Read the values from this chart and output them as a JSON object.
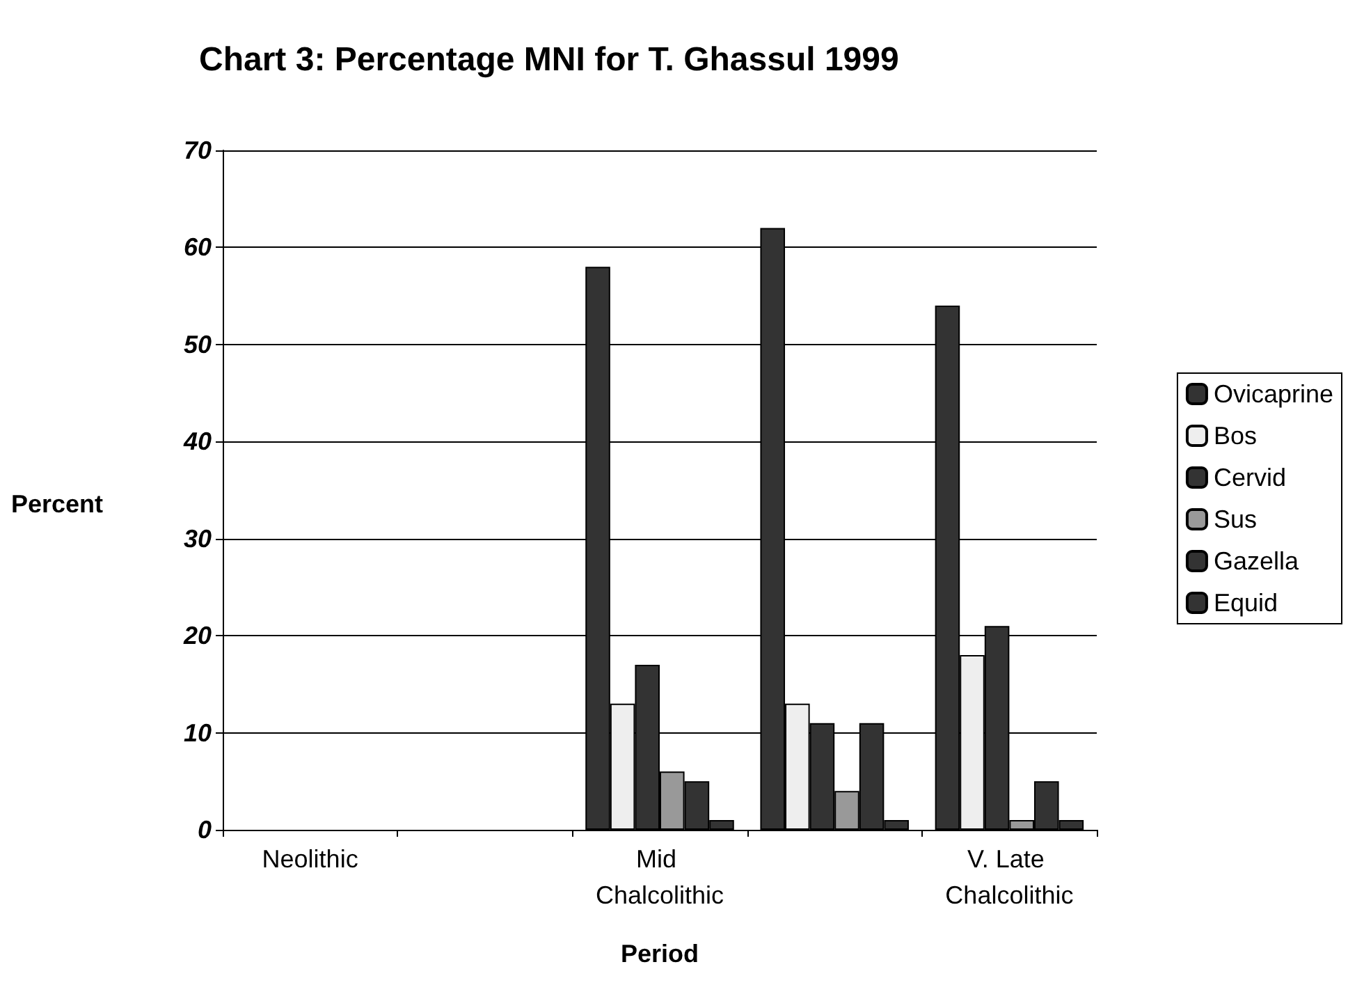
{
  "chart_data": {
    "type": "bar",
    "title": "Chart 3: Percentage MNI for T. Ghassul 1999",
    "xlabel": "Period",
    "ylabel": "Percent",
    "categories": [
      "Neolithic",
      null,
      "Mid Chalcolithic",
      null,
      "V. Late Chalcolithic"
    ],
    "series": [
      {
        "name": "Ovicaprine",
        "color": "#333333",
        "values": [
          0,
          0,
          58,
          62,
          54
        ]
      },
      {
        "name": "Bos",
        "color": "#eeeeee",
        "values": [
          0,
          0,
          13,
          13,
          18
        ]
      },
      {
        "name": "Cervid",
        "color": "#333333",
        "values": [
          0,
          0,
          17,
          11,
          21
        ]
      },
      {
        "name": "Sus",
        "color": "#999999",
        "values": [
          0,
          0,
          6,
          4,
          1
        ]
      },
      {
        "name": "Gazella",
        "color": "#333333",
        "values": [
          0,
          0,
          5,
          11,
          5
        ]
      },
      {
        "name": "Equid",
        "color": "#333333",
        "values": [
          0,
          0,
          1,
          1,
          1
        ]
      }
    ],
    "ylim": [
      0,
      70
    ],
    "yticks": [
      0,
      10,
      20,
      30,
      40,
      50,
      60,
      70
    ],
    "grid": "y",
    "legend": "right"
  }
}
